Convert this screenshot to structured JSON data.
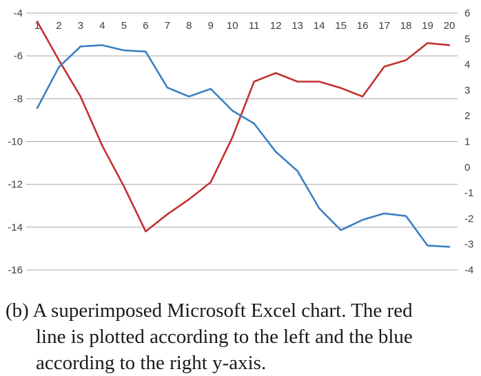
{
  "chart_data": {
    "type": "line",
    "x": [
      1,
      2,
      3,
      4,
      5,
      6,
      7,
      8,
      9,
      10,
      11,
      12,
      13,
      14,
      15,
      16,
      17,
      18,
      19,
      20
    ],
    "xticks": [
      "1",
      "2",
      "3",
      "4",
      "5",
      "6",
      "7",
      "8",
      "9",
      "10",
      "11",
      "12",
      "13",
      "14",
      "15",
      "16",
      "17",
      "18",
      "19",
      "20"
    ],
    "left_axis": {
      "ylim": [
        -16,
        -4
      ],
      "ticks": [
        "-4",
        "-6",
        "-8",
        "-10",
        "-12",
        "-14",
        "-16"
      ]
    },
    "right_axis": {
      "ylim": [
        -4,
        6
      ],
      "ticks": [
        "6",
        "5",
        "4",
        "3",
        "2",
        "1",
        "0",
        "-1",
        "-2",
        "-3",
        "-4"
      ]
    },
    "grid": true,
    "series": [
      {
        "axis": "left",
        "color": "#c0312f",
        "values": [
          -4.4,
          -6.2,
          -7.9,
          -10.2,
          -12.1,
          -14.2,
          -13.4,
          -12.7,
          -11.9,
          -9.8,
          -7.2,
          -6.8,
          -7.2,
          -7.2,
          -7.5,
          -7.9,
          -6.5,
          -6.2,
          -5.4,
          -5.5
        ]
      },
      {
        "axis": "right",
        "color": "#3c7fc1",
        "values": [
          2.3,
          3.9,
          4.7,
          4.75,
          4.55,
          4.5,
          3.1,
          2.75,
          3.05,
          2.2,
          1.7,
          0.6,
          -0.15,
          -1.6,
          -2.45,
          -2.05,
          -1.8,
          -1.9,
          -3.05,
          -3.1
        ]
      }
    ]
  },
  "caption": {
    "line1": "(b) A superimposed Microsoft Excel chart.  The red",
    "line2": "line is plotted according to the left and the blue",
    "line3": "according to the right y-axis."
  }
}
